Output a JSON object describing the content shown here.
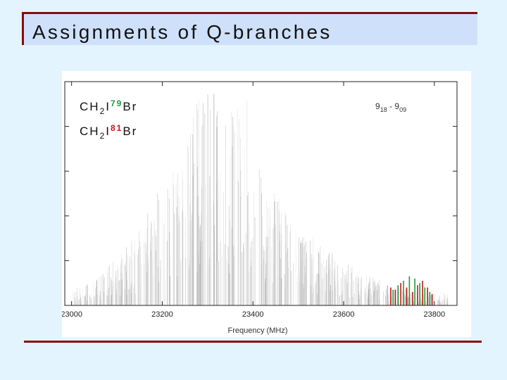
{
  "slide": {
    "title": "Assignments of Q-branches",
    "accent_color": "#8b0a0a",
    "title_band_color": "#cfe1fa",
    "background_color": "#e4f4fe"
  },
  "chart_data": {
    "type": "bar",
    "title": "",
    "xlabel": "Frequency (MHz)",
    "ylabel": "",
    "xlim": [
      22985,
      23850
    ],
    "ylim": [
      0,
      1
    ],
    "x_ticks": [
      23000,
      23200,
      23400,
      23600,
      23800
    ],
    "grid": false,
    "legend": {
      "placement": "top-left",
      "entries": [
        {
          "formula_main": "CH",
          "sub": "2",
          "halogen": "I",
          "isotope": "79",
          "tail": "Br",
          "color": "#1e9a3a"
        },
        {
          "formula_main": "CH",
          "sub": "2",
          "halogen": "I",
          "isotope": "81",
          "tail": "Br",
          "color": "#c41616"
        }
      ]
    },
    "annotation": {
      "j_upper": "9",
      "ka_kc_upper": "18",
      "separator": " - ",
      "j_lower": "9",
      "ka_kc_lower": "09"
    },
    "series": [
      {
        "name": "CH2I79Br",
        "color": "#1e9a3a",
        "x": [
          23709,
          23720,
          23732,
          23745,
          23757,
          23768,
          23779,
          23790
        ],
        "values": [
          0.07,
          0.09,
          0.11,
          0.13,
          0.12,
          0.1,
          0.08,
          0.06
        ]
      },
      {
        "name": "CH2I81Br",
        "color": "#c41616",
        "x": [
          23704,
          23714,
          23726,
          23739,
          23752,
          23763,
          23774,
          23785,
          23795
        ],
        "values": [
          0.08,
          0.07,
          0.1,
          0.08,
          0.06,
          0.09,
          0.11,
          0.08,
          0.05
        ]
      }
    ]
  }
}
